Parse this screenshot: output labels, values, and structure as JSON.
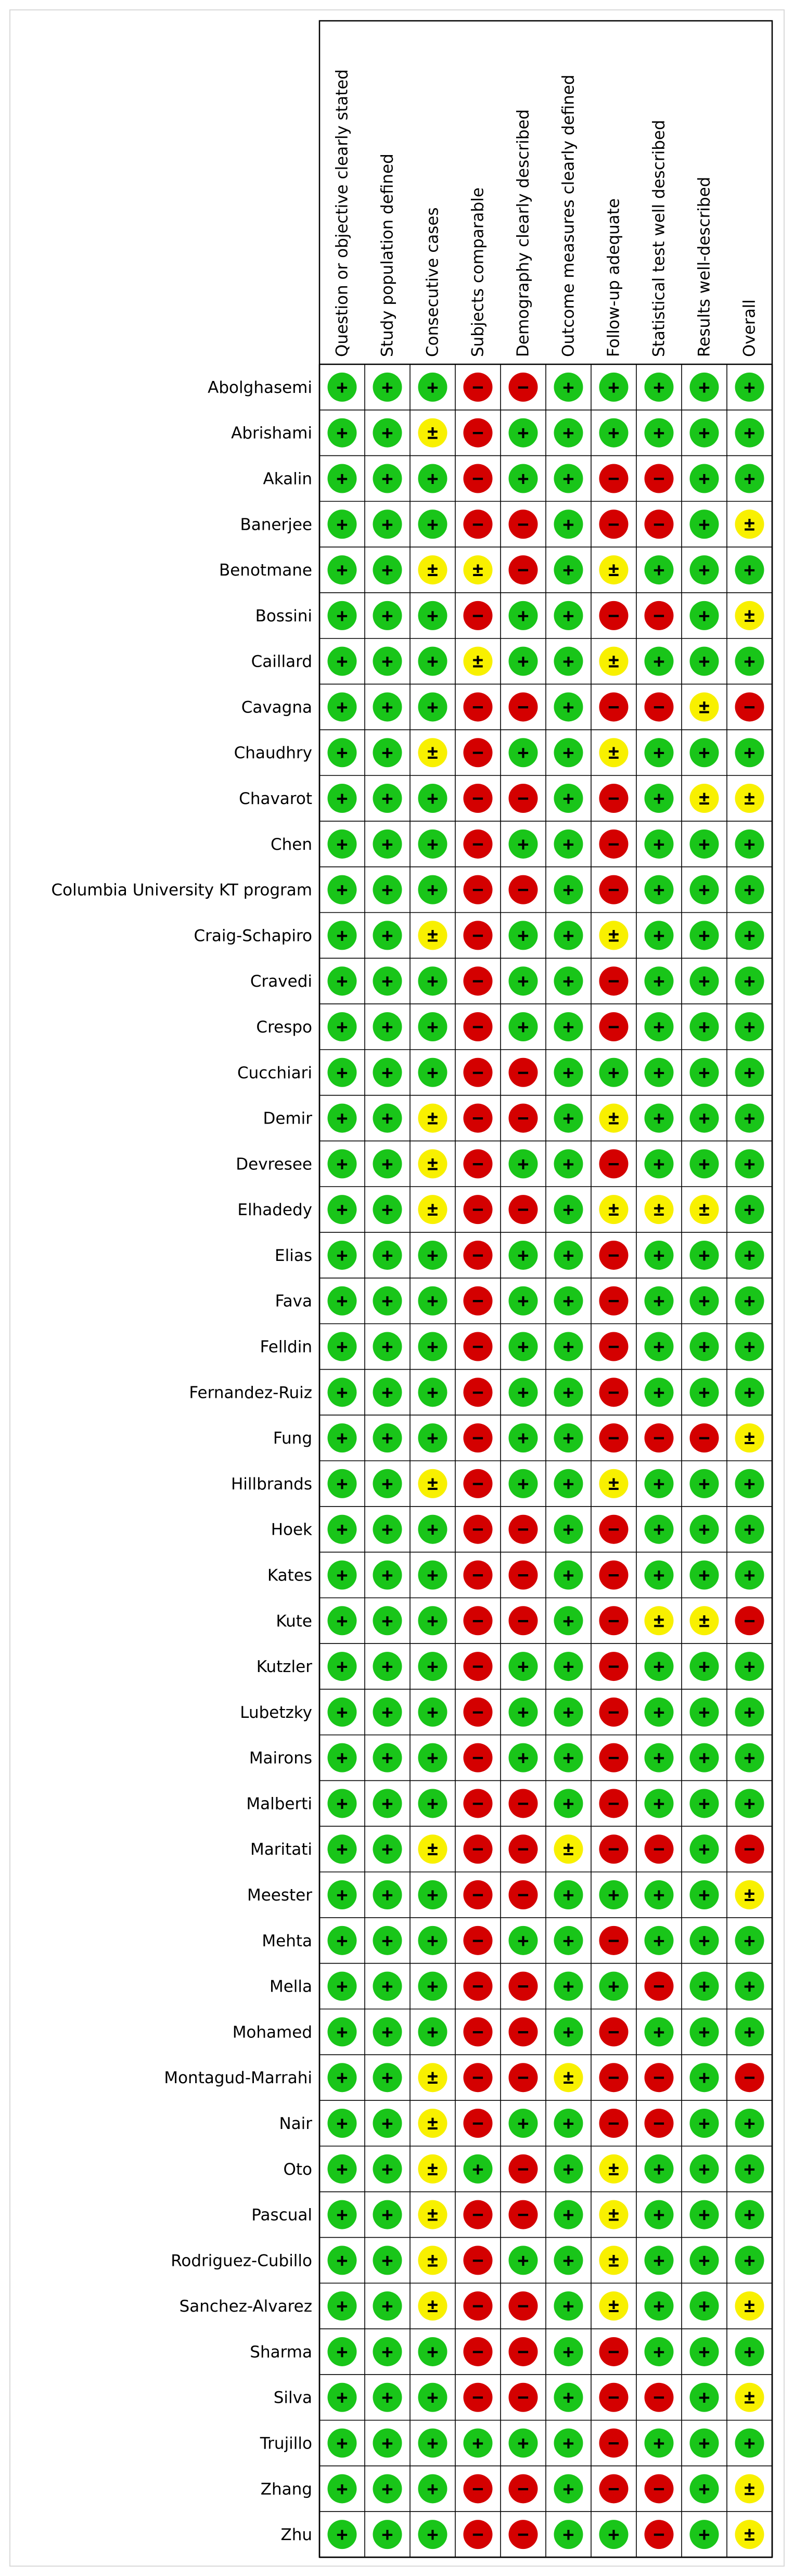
{
  "chart_data": {
    "type": "table",
    "columns": [
      "Question or objective clearly stated",
      "Study population defined",
      "Consecutive cases",
      "Subjects comparable",
      "Demography clearly described",
      "Outcome measures clearly defined",
      "Follow-up adequate",
      "Statistical test well described",
      "Results well-described",
      "Overall"
    ],
    "legend": {
      "+": {
        "symbol": "+",
        "color": "#19c519"
      },
      "?": {
        "symbol": "±",
        "color": "#f8f000"
      },
      "-": {
        "symbol": "−",
        "color": "#d40000"
      }
    },
    "rows": [
      {
        "study": "Abolghasemi",
        "values": [
          "+",
          "+",
          "+",
          "-",
          "-",
          "+",
          "+",
          "+",
          "+",
          "+"
        ]
      },
      {
        "study": "Abrishami",
        "values": [
          "+",
          "+",
          "?",
          "-",
          "+",
          "+",
          "+",
          "+",
          "+",
          "+"
        ]
      },
      {
        "study": "Akalin",
        "values": [
          "+",
          "+",
          "+",
          "-",
          "+",
          "+",
          "-",
          "-",
          "+",
          "+"
        ]
      },
      {
        "study": "Banerjee",
        "values": [
          "+",
          "+",
          "+",
          "-",
          "-",
          "+",
          "-",
          "-",
          "+",
          "?"
        ]
      },
      {
        "study": "Benotmane",
        "values": [
          "+",
          "+",
          "?",
          "?",
          "-",
          "+",
          "?",
          "+",
          "+",
          "+"
        ]
      },
      {
        "study": "Bossini",
        "values": [
          "+",
          "+",
          "+",
          "-",
          "+",
          "+",
          "-",
          "-",
          "+",
          "?"
        ]
      },
      {
        "study": "Caillard",
        "values": [
          "+",
          "+",
          "+",
          "?",
          "+",
          "+",
          "?",
          "+",
          "+",
          "+"
        ]
      },
      {
        "study": "Cavagna",
        "values": [
          "+",
          "+",
          "+",
          "-",
          "-",
          "+",
          "-",
          "-",
          "?",
          "-"
        ]
      },
      {
        "study": "Chaudhry",
        "values": [
          "+",
          "+",
          "?",
          "-",
          "+",
          "+",
          "?",
          "+",
          "+",
          "+"
        ]
      },
      {
        "study": "Chavarot",
        "values": [
          "+",
          "+",
          "+",
          "-",
          "-",
          "+",
          "-",
          "+",
          "?",
          "?"
        ]
      },
      {
        "study": "Chen",
        "values": [
          "+",
          "+",
          "+",
          "-",
          "+",
          "+",
          "-",
          "+",
          "+",
          "+"
        ]
      },
      {
        "study": "Columbia University KT program",
        "values": [
          "+",
          "+",
          "+",
          "-",
          "-",
          "+",
          "-",
          "+",
          "+",
          "+"
        ]
      },
      {
        "study": "Craig-Schapiro",
        "values": [
          "+",
          "+",
          "?",
          "-",
          "+",
          "+",
          "?",
          "+",
          "+",
          "+"
        ]
      },
      {
        "study": "Cravedi",
        "values": [
          "+",
          "+",
          "+",
          "-",
          "+",
          "+",
          "-",
          "+",
          "+",
          "+"
        ]
      },
      {
        "study": "Crespo",
        "values": [
          "+",
          "+",
          "+",
          "-",
          "+",
          "+",
          "-",
          "+",
          "+",
          "+"
        ]
      },
      {
        "study": "Cucchiari",
        "values": [
          "+",
          "+",
          "+",
          "-",
          "-",
          "+",
          "+",
          "+",
          "+",
          "+"
        ]
      },
      {
        "study": "Demir",
        "values": [
          "+",
          "+",
          "?",
          "-",
          "-",
          "+",
          "?",
          "+",
          "+",
          "+"
        ]
      },
      {
        "study": "Devresee",
        "values": [
          "+",
          "+",
          "?",
          "-",
          "+",
          "+",
          "-",
          "+",
          "+",
          "+"
        ]
      },
      {
        "study": "Elhadedy",
        "values": [
          "+",
          "+",
          "?",
          "-",
          "-",
          "+",
          "?",
          "?",
          "?",
          "+"
        ]
      },
      {
        "study": "Elias",
        "values": [
          "+",
          "+",
          "+",
          "-",
          "+",
          "+",
          "-",
          "+",
          "+",
          "+"
        ]
      },
      {
        "study": "Fava",
        "values": [
          "+",
          "+",
          "+",
          "-",
          "+",
          "+",
          "-",
          "+",
          "+",
          "+"
        ]
      },
      {
        "study": "Felldin",
        "values": [
          "+",
          "+",
          "+",
          "-",
          "+",
          "+",
          "-",
          "+",
          "+",
          "+"
        ]
      },
      {
        "study": "Fernandez-Ruiz",
        "values": [
          "+",
          "+",
          "+",
          "-",
          "+",
          "+",
          "-",
          "+",
          "+",
          "+"
        ]
      },
      {
        "study": "Fung",
        "values": [
          "+",
          "+",
          "+",
          "-",
          "+",
          "+",
          "-",
          "-",
          "-",
          "?"
        ]
      },
      {
        "study": "Hillbrands",
        "values": [
          "+",
          "+",
          "?",
          "-",
          "+",
          "+",
          "?",
          "+",
          "+",
          "+"
        ]
      },
      {
        "study": "Hoek",
        "values": [
          "+",
          "+",
          "+",
          "-",
          "-",
          "+",
          "-",
          "+",
          "+",
          "+"
        ]
      },
      {
        "study": "Kates",
        "values": [
          "+",
          "+",
          "+",
          "-",
          "-",
          "+",
          "-",
          "+",
          "+",
          "+"
        ]
      },
      {
        "study": "Kute",
        "values": [
          "+",
          "+",
          "+",
          "-",
          "-",
          "+",
          "-",
          "?",
          "?",
          "-"
        ]
      },
      {
        "study": "Kutzler",
        "values": [
          "+",
          "+",
          "+",
          "-",
          "+",
          "+",
          "-",
          "+",
          "+",
          "+"
        ]
      },
      {
        "study": "Lubetzky",
        "values": [
          "+",
          "+",
          "+",
          "-",
          "+",
          "+",
          "-",
          "+",
          "+",
          "+"
        ]
      },
      {
        "study": "Mairons",
        "values": [
          "+",
          "+",
          "+",
          "-",
          "+",
          "+",
          "-",
          "+",
          "+",
          "+"
        ]
      },
      {
        "study": "Malberti",
        "values": [
          "+",
          "+",
          "+",
          "-",
          "-",
          "+",
          "-",
          "+",
          "+",
          "+"
        ]
      },
      {
        "study": "Maritati",
        "values": [
          "+",
          "+",
          "?",
          "-",
          "-",
          "?",
          "-",
          "-",
          "+",
          "-"
        ]
      },
      {
        "study": "Meester",
        "values": [
          "+",
          "+",
          "+",
          "-",
          "-",
          "+",
          "+",
          "+",
          "+",
          "?"
        ]
      },
      {
        "study": "Mehta",
        "values": [
          "+",
          "+",
          "+",
          "-",
          "+",
          "+",
          "-",
          "+",
          "+",
          "+"
        ]
      },
      {
        "study": "Mella",
        "values": [
          "+",
          "+",
          "+",
          "-",
          "-",
          "+",
          "+",
          "-",
          "+",
          "+"
        ]
      },
      {
        "study": "Mohamed",
        "values": [
          "+",
          "+",
          "+",
          "-",
          "-",
          "+",
          "-",
          "+",
          "+",
          "+"
        ]
      },
      {
        "study": "Montagud-Marrahi",
        "values": [
          "+",
          "+",
          "?",
          "-",
          "-",
          "?",
          "-",
          "-",
          "+",
          "-"
        ]
      },
      {
        "study": "Nair",
        "values": [
          "+",
          "+",
          "?",
          "-",
          "+",
          "+",
          "-",
          "-",
          "+",
          "+"
        ]
      },
      {
        "study": "Oto",
        "values": [
          "+",
          "+",
          "?",
          "+",
          "-",
          "+",
          "?",
          "+",
          "+",
          "+"
        ]
      },
      {
        "study": "Pascual",
        "values": [
          "+",
          "+",
          "?",
          "-",
          "-",
          "+",
          "?",
          "+",
          "+",
          "+"
        ]
      },
      {
        "study": "Rodriguez-Cubillo",
        "values": [
          "+",
          "+",
          "?",
          "-",
          "+",
          "+",
          "?",
          "+",
          "+",
          "+"
        ]
      },
      {
        "study": "Sanchez-Alvarez",
        "values": [
          "+",
          "+",
          "?",
          "-",
          "-",
          "+",
          "?",
          "+",
          "+",
          "?"
        ]
      },
      {
        "study": "Sharma",
        "values": [
          "+",
          "+",
          "+",
          "-",
          "-",
          "+",
          "-",
          "+",
          "+",
          "+"
        ]
      },
      {
        "study": "Silva",
        "values": [
          "+",
          "+",
          "+",
          "-",
          "-",
          "+",
          "-",
          "-",
          "+",
          "?"
        ]
      },
      {
        "study": "Trujillo",
        "values": [
          "+",
          "+",
          "+",
          "+",
          "+",
          "+",
          "-",
          "+",
          "+",
          "+"
        ]
      },
      {
        "study": "Zhang",
        "values": [
          "+",
          "+",
          "+",
          "-",
          "-",
          "+",
          "-",
          "-",
          "+",
          "?"
        ]
      },
      {
        "study": "Zhu",
        "values": [
          "+",
          "+",
          "+",
          "-",
          "-",
          "+",
          "+",
          "-",
          "+",
          "?"
        ]
      }
    ]
  }
}
